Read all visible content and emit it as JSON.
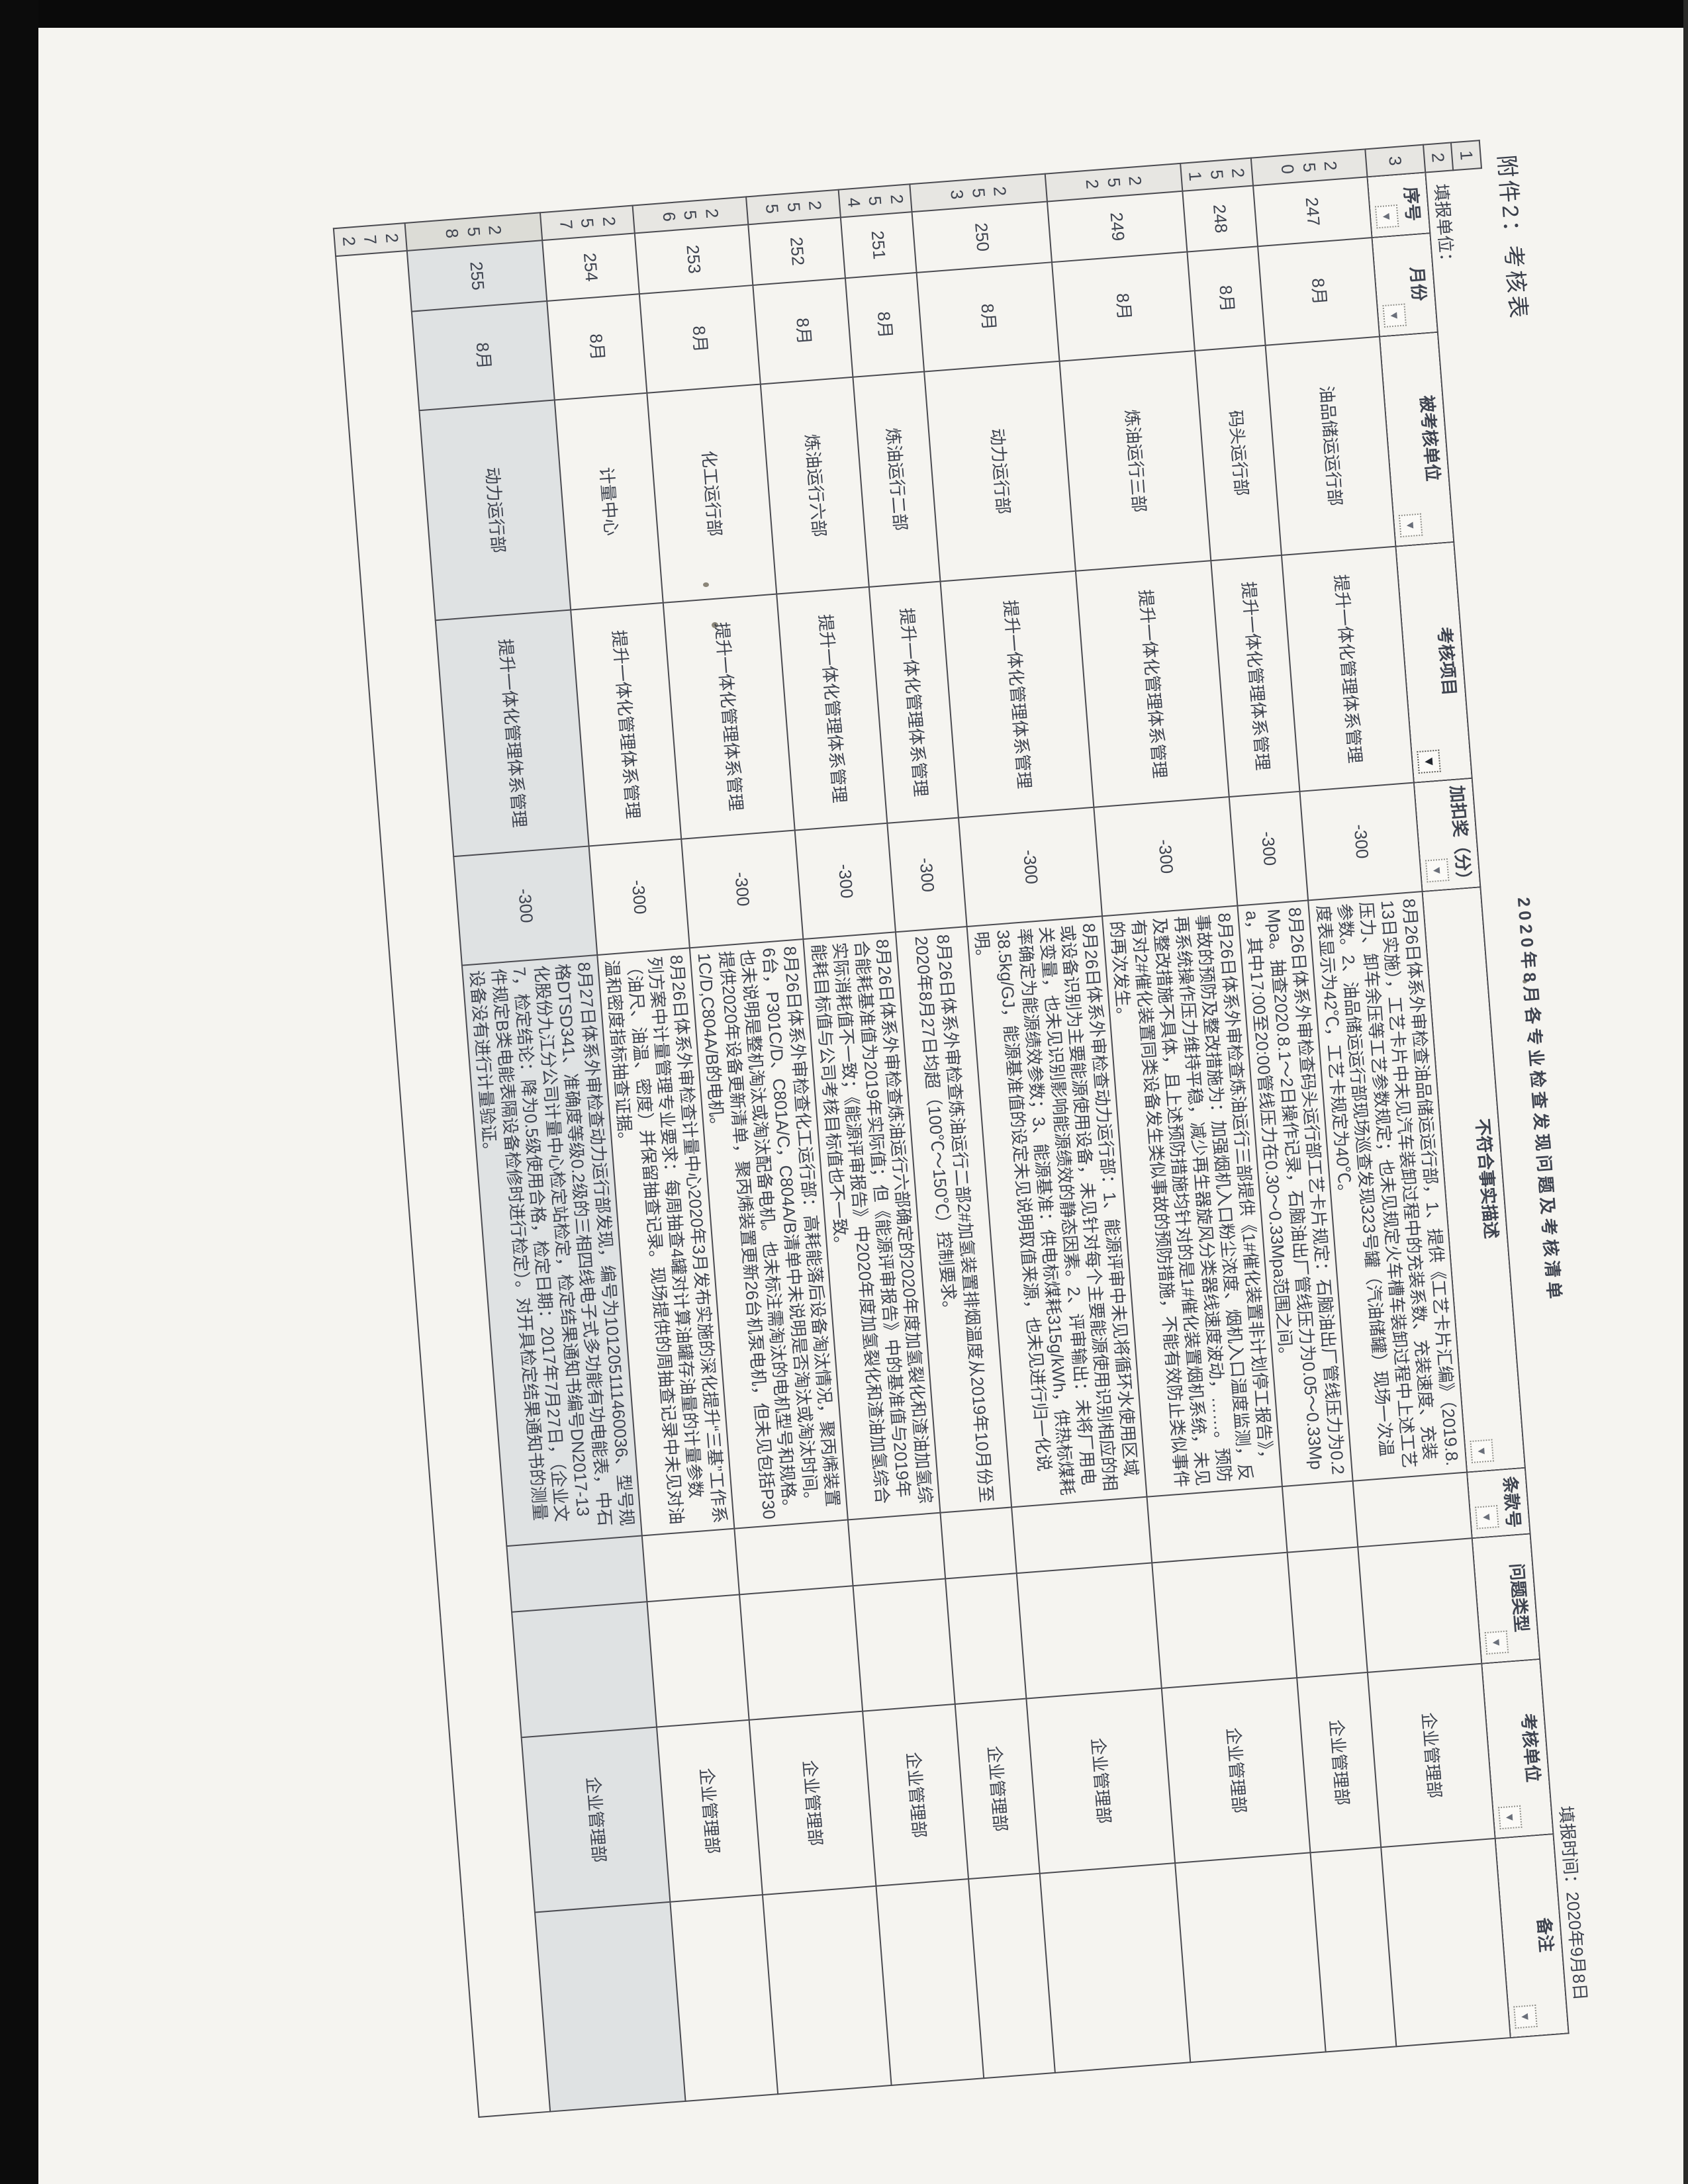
{
  "colors": {
    "paper": "#f5f4f0",
    "ink": "#3f4450",
    "grid_line": "#4a4a50",
    "row_band_bg": "#e7e6e2",
    "highlight_row_bg": "#dfe2e3",
    "scan_edge": "#0a0a0a"
  },
  "attachment_label": "附件2：考核表",
  "title": "2020年8月各专业检查发现问题及考核清单",
  "filing": {
    "unit_label": "填报单位：",
    "time_label": "填报时间：2020年9月8日"
  },
  "row_band": {
    "title_row": "1",
    "filing_row": "2",
    "header_row": "3",
    "footer_row": "272"
  },
  "table": {
    "columns": [
      {
        "key": "serial",
        "label": "序号",
        "filter": true,
        "filter_active": false
      },
      {
        "key": "month",
        "label": "月份",
        "filter": true,
        "filter_active": false
      },
      {
        "key": "unit",
        "label": "被考核单位",
        "filter": true,
        "filter_active": false
      },
      {
        "key": "project",
        "label": "考核项目",
        "filter": true,
        "filter_active": true
      },
      {
        "key": "score",
        "label": "加扣奖（分）",
        "filter": true,
        "filter_active": false
      },
      {
        "key": "description",
        "label": "不符合事实描述",
        "filter": true,
        "filter_active": false
      },
      {
        "key": "clause",
        "label": "条款号",
        "filter": true,
        "filter_active": false
      },
      {
        "key": "problem_type",
        "label": "问题类型",
        "filter": true,
        "filter_active": false
      },
      {
        "key": "assessor",
        "label": "考核单位",
        "filter": true,
        "filter_active": false
      },
      {
        "key": "remark",
        "label": "备注",
        "filter": true,
        "filter_active": false
      }
    ],
    "records": [
      {
        "band": "250",
        "serial": "247",
        "month": "8月",
        "unit": "油品储运运行部",
        "project": "提升一体化管理体系管理",
        "score": "-300",
        "description": "8月26日体系外审检查油品储运运行部，1、提供《工艺卡片汇编》（2019.8.13日实施），工艺卡片中未见汽车装卸过程中的充装系数、充装速度、充装压力、卸车余压等工艺参数规定；也未见规定火车槽车装卸过程中上述工艺参数。2、油品储运运行部现场巡查发现323号罐（汽油储罐）现场一次温度表显示为42℃，工艺卡规定为40℃。",
        "clause": "",
        "problem_type": "",
        "assessor": "企业管理部",
        "remark": "",
        "highlight": false
      },
      {
        "band": "251",
        "serial": "248",
        "month": "8月",
        "unit": "码头运行部",
        "project": "提升一体化管理体系管理",
        "score": "-300",
        "description": "8月26日体系外审检查码头运行部工艺卡片规定：石脑油出厂管线压力为0.2Mpa。抽查2020.8.1～2日操作记录，石脑油出厂管线压力为0.05～0.33Mpa，其中17:00至20:00管线压力在0.30～0.33Mpa范围之间。",
        "clause": "",
        "problem_type": "",
        "assessor": "企业管理部",
        "remark": "",
        "highlight": false
      },
      {
        "band": "252",
        "serial": "249",
        "month": "8月",
        "unit": "炼油运行三部",
        "project": "提升一体化管理体系管理",
        "score": "-300",
        "description": "8月26日体系外审检查炼油运行三部提供《1#催化装置非计划停工报告》，事故的预防及整改措施为：加强烟机入口粉尘浓度、烟机入口温度监测，反再系统操作压力维持平稳，减少再生器旋风分类器线速度波动，……。预防及整改措施不具体，且上述预防措施均针对的是1#催化装置烟机系统，未见有对2#催化装置同类设备发生类似事故的预防措施，不能有效防止类似事件的再次发生。",
        "clause": "",
        "problem_type": "",
        "assessor": "企业管理部",
        "remark": "",
        "highlight": false
      },
      {
        "band": "253",
        "serial": "250",
        "month": "8月",
        "unit": "动力运行部",
        "project": "提升一体化管理体系管理",
        "score": "-300",
        "description": "8月26日体系外审检查动力运行部：1、能源评审中未见将循环水使用区域或设备识别为主要能源使用设备，未见针对每个主要能源使用识别相应的相关变量，也未见识别影响能源绩效的静态因素。2、评审输出：未将厂用电率确定为能源绩效参数；3、能源基准：供电标煤耗315g/kWh，供热标煤耗38.5kg/GJ，能源基准值的设定未见说明取值来源，也未见进行归一化说明。",
        "clause": "",
        "problem_type": "",
        "assessor": "企业管理部",
        "remark": "",
        "highlight": false
      },
      {
        "band": "254",
        "serial": "251",
        "month": "8月",
        "unit": "炼油运行二部",
        "project": "提升一体化管理体系管理",
        "score": "-300",
        "description": "8月26日体系外审检查炼油运行二部2#加氢装置排烟温度从2019年10月份至2020年8月27日均超（100℃～150℃）控制要求。",
        "clause": "",
        "problem_type": "",
        "assessor": "企业管理部",
        "remark": "",
        "highlight": false
      },
      {
        "band": "255",
        "serial": "252",
        "month": "8月",
        "unit": "炼油运行六部",
        "project": "提升一体化管理体系管理",
        "score": "-300",
        "description": "8月26日体系外审检查炼油运行六部确定的2020年度加氢裂化和渣油加氢综合能耗基准值为2019年实际值；但《能源评审报告》中的基准值与2019年实际消耗值不一致；《能源评审报告》中2020年度加氢裂化和渣油加氢综合能耗目标值与公司考核目标值也不一致。",
        "clause": "",
        "problem_type": "",
        "assessor": "企业管理部",
        "remark": "",
        "highlight": false
      },
      {
        "band": "256",
        "serial": "253",
        "month": "8月",
        "unit": "化工运行部",
        "project": "提升一体化管理体系管理",
        "score": "-300",
        "description": "8月26日体系外审检查化工运行部：高耗能落后设备淘汰情况，聚丙烯装置6台，P301C/D、C801A/C，C804A/B清单中未说明是否淘汰或淘汰时间。也未说明是整机淘汰或淘汰配备电机。也未标注需淘汰的电机型号和规格。提供2020年设备更新清单，聚丙烯装置更新26台机泵电机，但未见包括P301C/D,C804A/B的电机。",
        "clause": "",
        "problem_type": "",
        "assessor": "企业管理部",
        "remark": "",
        "highlight": false
      },
      {
        "band": "257",
        "serial": "254",
        "month": "8月",
        "unit": "计量中心",
        "project": "提升一体化管理体系管理",
        "score": "-300",
        "description": "8月26日体系外审检查计量中心2020年3月发布实施的深化提升“三基”工作系列方案中计量管理专业要求：每周抽查4罐对计算油罐存油量的计量参数（油尺、油温、密度）并保留抽查记录。现场提供的周抽查记录中未见对油温和密度指标抽查证据。",
        "clause": "",
        "problem_type": "",
        "assessor": "企业管理部",
        "remark": "",
        "highlight": false
      },
      {
        "band": "258",
        "serial": "255",
        "month": "8月",
        "unit": "动力运行部",
        "project": "提升一体化管理体系管理",
        "score": "-300",
        "description": "8月27日体系外审检查动力运行部发现，编号为101205111460036、型号规格DTSD341、准确度等级0.2级的三相四线电子式多功能有功电能表，中石化股份九江分公司计量中心检定站检定，检定结果通知书编号DN2017-137，检定结论：降为0.5级使用合格，检定日期：2017年7月27日，（企业文件规定B类电能表隔设备检修时进行检定）。对开具检定结果通知书的测量设备没有进行计量验证。",
        "clause": "",
        "problem_type": "",
        "assessor": "企业管理部",
        "remark": "",
        "highlight": true
      }
    ]
  }
}
